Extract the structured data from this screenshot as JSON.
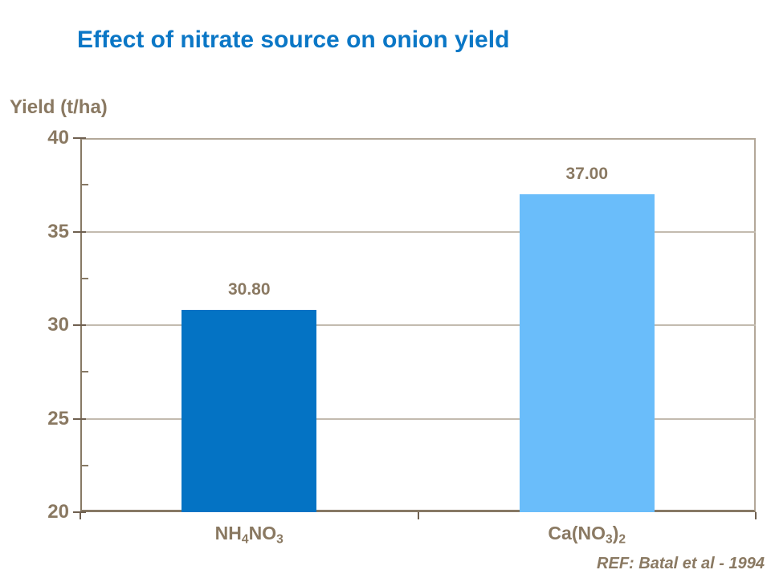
{
  "title": "Effect of nitrate source on onion yield",
  "ref_note": "REF: Batal et al - 1994",
  "colors": {
    "title-blue": "#0b77c6",
    "text-brown": "#8a7962",
    "axis-dark": "#877965",
    "tick-dark": "#6f6050",
    "frame-light": "#b3a899",
    "gridline": "#c3bbaf",
    "bar-dark-blue": "#0473c4",
    "bar-light-blue": "#6abdfa"
  },
  "chart_data": {
    "type": "bar",
    "title": "Effect of nitrate source on onion yield",
    "xlabel": "",
    "ylabel": "Yield (t/ha)",
    "categories": [
      "NH₄NO₃",
      "Ca(NO₃)₂"
    ],
    "category_segments": [
      [
        {
          "text": "NH"
        },
        {
          "text": "4",
          "sub": true
        },
        {
          "text": "NO"
        },
        {
          "text": "3",
          "sub": true
        }
      ],
      [
        {
          "text": "Ca(NO"
        },
        {
          "text": "3",
          "sub": true
        },
        {
          "text": ")"
        },
        {
          "text": "2",
          "sub": true
        }
      ]
    ],
    "values": [
      30.8,
      37.0
    ],
    "value_labels": [
      "30.80",
      "37.00"
    ],
    "bar_colors": [
      "#0473c4",
      "#6abdfa"
    ],
    "ylim": [
      20,
      40
    ],
    "y_major_ticks": [
      20,
      25,
      30,
      35,
      40
    ],
    "y_minor_ticks": [
      22.5,
      27.5,
      32.5,
      37.5
    ],
    "y_gridlines": [
      25,
      30,
      35
    ],
    "grid": "horizontal-major",
    "legend": "none",
    "annotation": "REF: Batal et al - 1994"
  }
}
